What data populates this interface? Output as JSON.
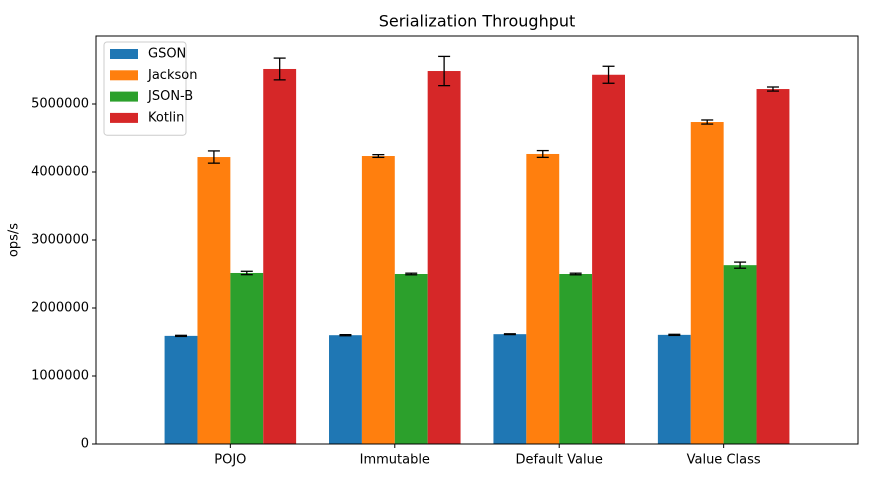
{
  "chart_data": {
    "type": "bar",
    "title": "Serialization Throughput",
    "y_label": "ops/s",
    "categories": [
      "POJO",
      "Immutable",
      "Default Value",
      "Value Class"
    ],
    "series": [
      {
        "name": "GSON",
        "color": "#1f77b4",
        "values": [
          1590000,
          1600000,
          1615000,
          1605000
        ],
        "errors": [
          8000,
          8000,
          6000,
          8000
        ]
      },
      {
        "name": "Jackson",
        "color": "#ff7f0e",
        "values": [
          4220000,
          4235000,
          4265000,
          4735000
        ],
        "errors": [
          90000,
          20000,
          50000,
          30000
        ]
      },
      {
        "name": "JSON-B",
        "color": "#2ca02c",
        "values": [
          2515000,
          2500000,
          2500000,
          2630000
        ],
        "errors": [
          25000,
          12000,
          12000,
          45000
        ]
      },
      {
        "name": "Kotlin",
        "color": "#d62728",
        "values": [
          5515000,
          5485000,
          5430000,
          5220000
        ],
        "errors": [
          160000,
          215000,
          125000,
          30000
        ]
      }
    ],
    "ylim": [
      0,
      6000000
    ],
    "yticks": [
      0,
      1000000,
      2000000,
      3000000,
      4000000,
      5000000
    ],
    "legend": "upper-left"
  }
}
